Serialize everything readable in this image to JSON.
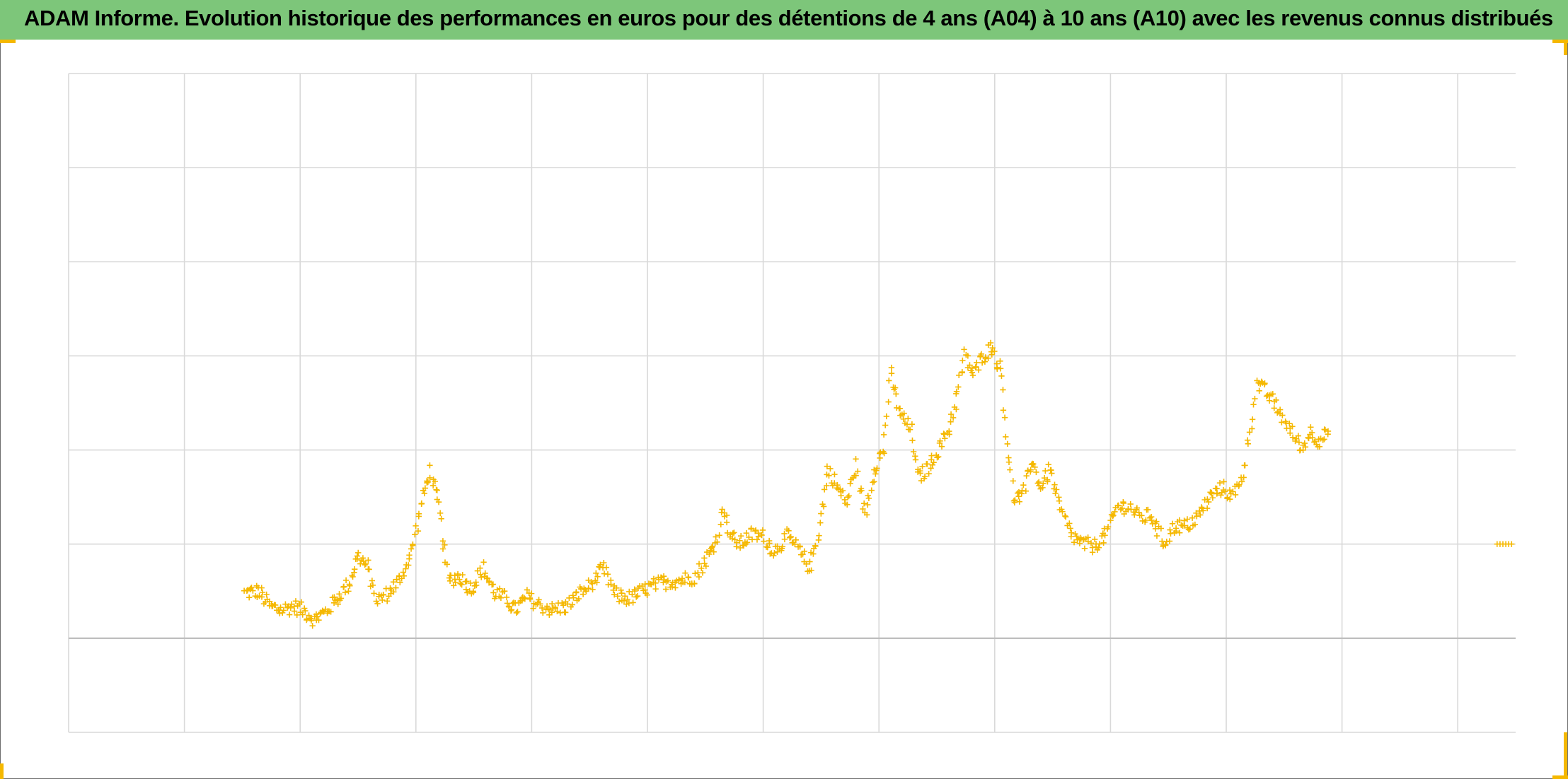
{
  "title": "ADAM Informe. Evolution historique des performances en euros pour des détentions de 4 ans (A04) à 10 ans (A10) avec les revenus connus distribués",
  "colors": {
    "title_background": "#7dc67a",
    "marker": "#f5b800",
    "grid": "#d9d9d9",
    "axis": "#bfbfbf",
    "corner_marks": "#f5b800"
  },
  "chart_data": {
    "type": "scatter",
    "marker": "plus",
    "title": "ADAM Informe. Evolution historique des performances en euros pour des détentions de 4 ans (A04) à 10 ans (A10) avec les revenus connus distribués",
    "xlabel": "",
    "ylabel": "",
    "xlim": [
      0,
      12.5
    ],
    "ylim": [
      -1,
      6
    ],
    "zero_line": 0,
    "grid": true,
    "x_gridline_count": 13,
    "y_gridline_count": 8,
    "tick_labels_visible": false,
    "legend": "none",
    "series": [
      {
        "anchors": [
          [
            1.52,
            0.48
          ],
          [
            1.64,
            0.5
          ],
          [
            1.74,
            0.34
          ],
          [
            1.84,
            0.3
          ],
          [
            1.94,
            0.34
          ],
          [
            2.02,
            0.3
          ],
          [
            2.12,
            0.2
          ],
          [
            2.22,
            0.28
          ],
          [
            2.32,
            0.42
          ],
          [
            2.42,
            0.58
          ],
          [
            2.5,
            0.88
          ],
          [
            2.58,
            0.76
          ],
          [
            2.66,
            0.4
          ],
          [
            2.76,
            0.48
          ],
          [
            2.86,
            0.62
          ],
          [
            2.96,
            0.9
          ],
          [
            3.04,
            1.4
          ],
          [
            3.12,
            1.78
          ],
          [
            3.2,
            1.4
          ],
          [
            3.28,
            0.62
          ],
          [
            3.38,
            0.66
          ],
          [
            3.48,
            0.52
          ],
          [
            3.58,
            0.74
          ],
          [
            3.68,
            0.48
          ],
          [
            3.78,
            0.42
          ],
          [
            3.86,
            0.3
          ],
          [
            3.96,
            0.44
          ],
          [
            4.06,
            0.36
          ],
          [
            4.18,
            0.3
          ],
          [
            4.3,
            0.34
          ],
          [
            4.42,
            0.48
          ],
          [
            4.52,
            0.58
          ],
          [
            4.62,
            0.74
          ],
          [
            4.72,
            0.46
          ],
          [
            4.84,
            0.42
          ],
          [
            4.96,
            0.5
          ],
          [
            5.06,
            0.56
          ],
          [
            5.16,
            0.6
          ],
          [
            5.3,
            0.62
          ],
          [
            5.42,
            0.66
          ],
          [
            5.52,
            0.86
          ],
          [
            5.6,
            1.04
          ],
          [
            5.66,
            1.4
          ],
          [
            5.72,
            1.08
          ],
          [
            5.8,
            1.0
          ],
          [
            5.9,
            1.1
          ],
          [
            6.0,
            1.08
          ],
          [
            6.1,
            0.92
          ],
          [
            6.2,
            1.08
          ],
          [
            6.3,
            0.96
          ],
          [
            6.4,
            0.74
          ],
          [
            6.48,
            1.14
          ],
          [
            6.56,
            1.8
          ],
          [
            6.64,
            1.6
          ],
          [
            6.72,
            1.44
          ],
          [
            6.8,
            1.84
          ],
          [
            6.88,
            1.3
          ],
          [
            6.96,
            1.8
          ],
          [
            7.04,
            2.0
          ],
          [
            7.1,
            2.8
          ],
          [
            7.18,
            2.4
          ],
          [
            7.28,
            2.2
          ],
          [
            7.34,
            1.7
          ],
          [
            7.42,
            1.8
          ],
          [
            7.5,
            1.98
          ],
          [
            7.6,
            2.2
          ],
          [
            7.68,
            2.6
          ],
          [
            7.74,
            3.0
          ],
          [
            7.82,
            2.8
          ],
          [
            7.9,
            3.0
          ],
          [
            7.98,
            3.1
          ],
          [
            8.06,
            2.8
          ],
          [
            8.1,
            2.2
          ],
          [
            8.16,
            1.5
          ],
          [
            8.24,
            1.5
          ],
          [
            8.32,
            1.9
          ],
          [
            8.4,
            1.6
          ],
          [
            8.48,
            1.8
          ],
          [
            8.56,
            1.4
          ],
          [
            8.66,
            1.1
          ],
          [
            8.76,
            1.0
          ],
          [
            8.86,
            0.98
          ],
          [
            8.96,
            1.1
          ],
          [
            9.06,
            1.4
          ],
          [
            9.16,
            1.4
          ],
          [
            9.26,
            1.28
          ],
          [
            9.36,
            1.3
          ],
          [
            9.46,
            1.0
          ],
          [
            9.56,
            1.2
          ],
          [
            9.66,
            1.18
          ],
          [
            9.76,
            1.3
          ],
          [
            9.86,
            1.5
          ],
          [
            9.96,
            1.6
          ],
          [
            10.06,
            1.5
          ],
          [
            10.16,
            1.8
          ],
          [
            10.26,
            2.7
          ],
          [
            10.36,
            2.6
          ],
          [
            10.46,
            2.4
          ],
          [
            10.56,
            2.2
          ],
          [
            10.66,
            2.0
          ],
          [
            10.72,
            2.2
          ],
          [
            10.8,
            2.1
          ],
          [
            10.88,
            2.2
          ]
        ],
        "tail": {
          "x": [
            12.34,
            12.48
          ],
          "y": 1.0
        }
      }
    ]
  }
}
